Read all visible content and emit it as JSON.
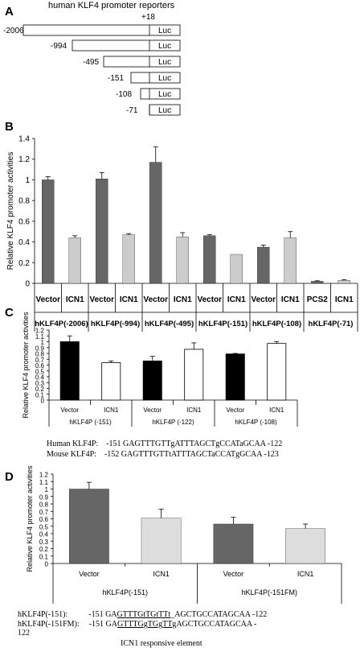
{
  "panel_a": {
    "letter": "A",
    "title": "human KLF4 promoter reporters",
    "plus18": "+18",
    "luc": "Luc",
    "constructs": [
      "-2006",
      "-994",
      "-495",
      "-151",
      "-108",
      "-71"
    ]
  },
  "chart_data": [
    {
      "panel": "B",
      "type": "bar",
      "ylabel": "Relative KLF4 promoter activities",
      "ylim": [
        0,
        1.4
      ],
      "yticks": [
        "0",
        "0.2",
        "0.4",
        "0.6",
        "0.8",
        "1",
        "1.2",
        "1.4"
      ],
      "categories": [
        "Vector",
        "ICN1",
        "Vector",
        "ICN1",
        "Vector",
        "ICN1",
        "Vector",
        "ICN1",
        "Vector",
        "ICN1",
        "PCS2",
        "ICN1"
      ],
      "values": [
        1.0,
        0.44,
        1.01,
        0.47,
        1.17,
        0.45,
        0.46,
        0.28,
        0.35,
        0.44,
        0.02,
        0.03
      ],
      "errors": [
        0.03,
        0.02,
        0.06,
        0.01,
        0.15,
        0.04,
        0.01,
        0.0,
        0.02,
        0.06,
        0.005,
        0.005
      ],
      "colors": [
        "#666666",
        "#cccccc",
        "#666666",
        "#cccccc",
        "#666666",
        "#cccccc",
        "#666666",
        "#cccccc",
        "#666666",
        "#cccccc",
        "#666666",
        "#cccccc"
      ],
      "groups": [
        "hKLF4P(-2006)",
        "hKLF4P(-994)",
        "hKLF4P(-495)",
        "hKLF4P(-151)",
        "hKLF4P(-108)",
        "hKLF4P(-71)"
      ]
    },
    {
      "panel": "C",
      "type": "bar",
      "ylabel": "Relative KLF4 promoter activities",
      "ylim": [
        0,
        1.2
      ],
      "yticks": [
        "0",
        "0.1",
        "0.2",
        "0.3",
        "0.4",
        "0.5",
        "0.6",
        "0.7",
        "0.8",
        "0.9",
        "1",
        "1.1",
        "1.2"
      ],
      "categories": [
        "Vector",
        "ICN1",
        "Vector",
        "ICN1",
        "Vector",
        "ICN1"
      ],
      "values": [
        1.0,
        0.64,
        0.67,
        0.87,
        0.79,
        0.97
      ],
      "errors": [
        0.1,
        0.03,
        0.08,
        0.11,
        0.01,
        0.03
      ],
      "colors": [
        "#000000",
        "#ffffff",
        "#000000",
        "#ffffff",
        "#000000",
        "#ffffff"
      ],
      "groups": [
        "hKLF4P (-151)",
        "hKLF4P (-122)",
        "hKLF4P (-108)"
      ]
    },
    {
      "panel": "D",
      "type": "bar",
      "ylabel": "Relative KLF4 promoter activities",
      "ylim": [
        0,
        1.2
      ],
      "yticks": [
        "0",
        "0.1",
        "0.2",
        "0.3",
        "0.4",
        "0.5",
        "0.6",
        "0.7",
        "0.8",
        "0.9",
        "1",
        "1.1",
        "1.2"
      ],
      "categories": [
        "Vector",
        "ICN1",
        "Vector",
        "ICN1"
      ],
      "values": [
        1.0,
        0.61,
        0.53,
        0.47
      ],
      "errors": [
        0.09,
        0.12,
        0.09,
        0.06
      ],
      "colors": [
        "#666666",
        "#dddddd",
        "#666666",
        "#dddddd"
      ],
      "groups": [
        "hKLF4P(-151)",
        "hKLF4P(-151FM)"
      ]
    }
  ],
  "panel_c_seq": {
    "human": "Human KLF4P:    -151 GAGTTTGTTgATTTAGCTgCCATaGCAA -122",
    "mouse": "Mouse KLF4P:    -152 GAGTTTGTTtATTTAGCTaCCATgGCAA -123"
  },
  "panel_d_seq": {
    "l1_label": "hKLF4P(-151):",
    "l1_pos": "-151 ",
    "l1_pre": "GA",
    "l1_u": "GTTTGtTGtTTt",
    "l1_post": "_AGCTGCCATAGCAA -122",
    "l2_label": "hKLF4P(-151FM):",
    "l2_pos": "-151 ",
    "l2_pre": "GA",
    "l2_u": "GTTTGgTGgTTg",
    "l2_post": "AGCTGCCATAGCAA -",
    "l3": "122",
    "caption": "ICN1 responsive element"
  }
}
